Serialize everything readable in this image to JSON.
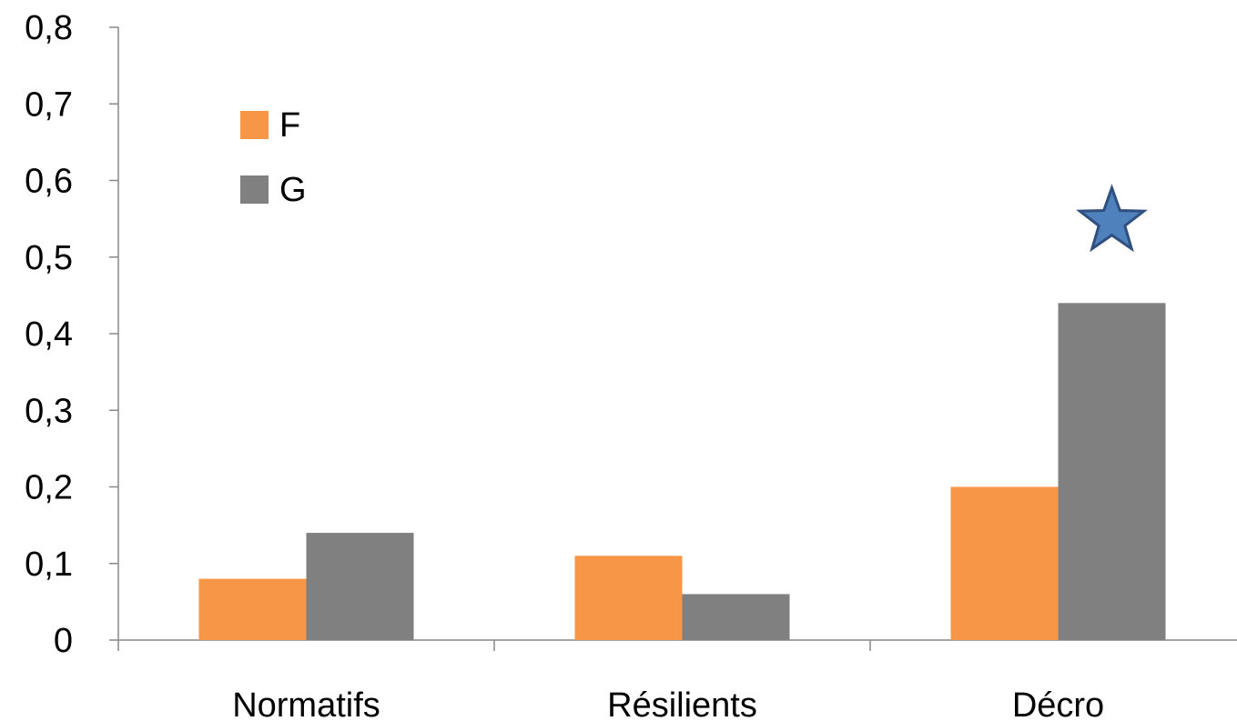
{
  "chart_data": {
    "type": "bar",
    "categories": [
      "Normatifs",
      "Résilients",
      "Décro"
    ],
    "series": [
      {
        "name": "F",
        "values": [
          0.08,
          0.11,
          0.2
        ],
        "color": "#F79646"
      },
      {
        "name": "G",
        "values": [
          0.14,
          0.06,
          0.44
        ],
        "color": "#808080"
      }
    ],
    "yticks": [
      "0",
      "0,1",
      "0,2",
      "0,3",
      "0,4",
      "0,5",
      "0,6",
      "0,7",
      "0,8"
    ],
    "ylim": [
      0,
      0.8
    ],
    "grid": false,
    "legend_position": "top-left",
    "annotations": [
      {
        "type": "star-icon",
        "category": "Décro",
        "y": 0.55,
        "color": "#4F81BD"
      }
    ]
  }
}
